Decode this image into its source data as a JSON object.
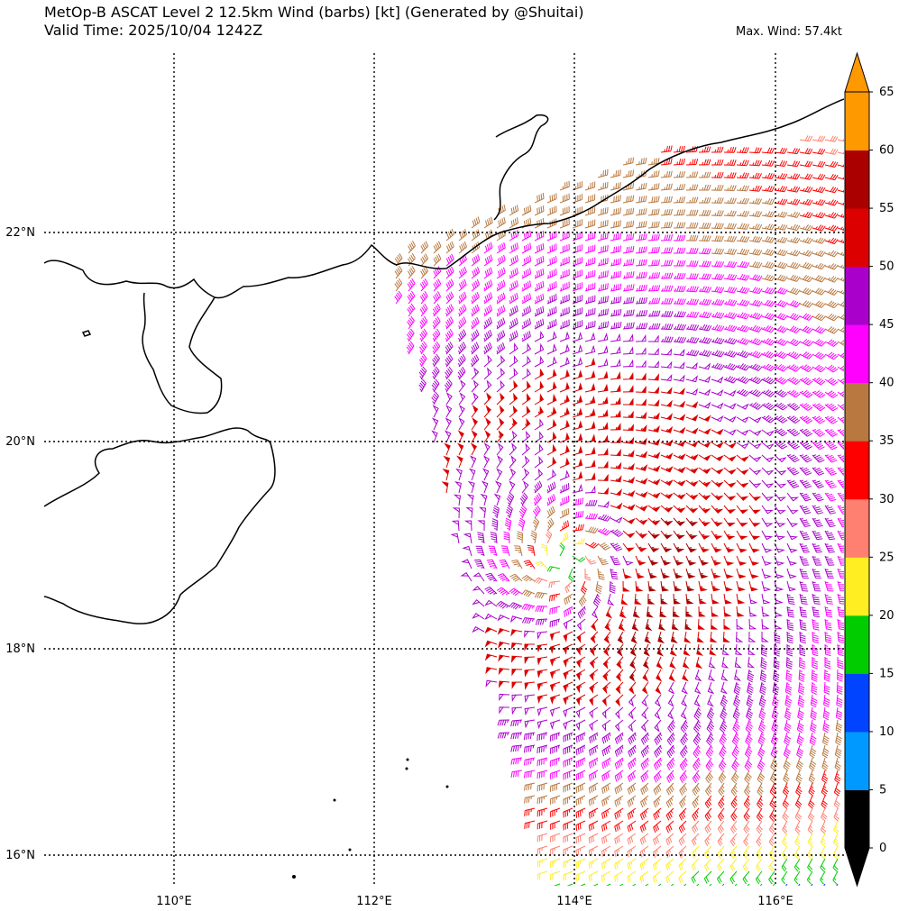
{
  "title_line1": "MetOp-B ASCAT Level 2 12.5km Wind (barbs) [kt] (Generated by @Shuitai)",
  "title_line2": "Valid Time: 2025/10/04 1242Z",
  "max_wind": "Max. Wind: 57.4kt",
  "lon_labels": [
    "110°E",
    "112°E",
    "114°E",
    "116°E"
  ],
  "lat_labels": [
    "22°N",
    "20°N",
    "18°N",
    "16°N"
  ],
  "colorbar": {
    "ticks": [
      "0",
      "5",
      "10",
      "15",
      "20",
      "25",
      "30",
      "35",
      "40",
      "45",
      "50",
      "55",
      "60",
      "65"
    ],
    "colors": [
      "#000000",
      "#0099ff",
      "#0044ff",
      "#00cc00",
      "#ffee22",
      "#ff8070",
      "#ff0000",
      "#b87840",
      "#ff00ff",
      "#aa00cc",
      "#dd0000",
      "#aa0000",
      "#ff9900"
    ],
    "under_color": "#000000",
    "over_color": "#ff9900"
  },
  "map_data": {
    "lon_range": [
      108.7,
      116.7
    ],
    "lat_range": [
      15.7,
      23.3
    ],
    "gridlines_lon": [
      110,
      112,
      114,
      116
    ],
    "gridlines_lat": [
      16,
      18,
      20,
      22
    ],
    "storm_center": {
      "lon": 113.9,
      "lat": 18.85
    }
  }
}
